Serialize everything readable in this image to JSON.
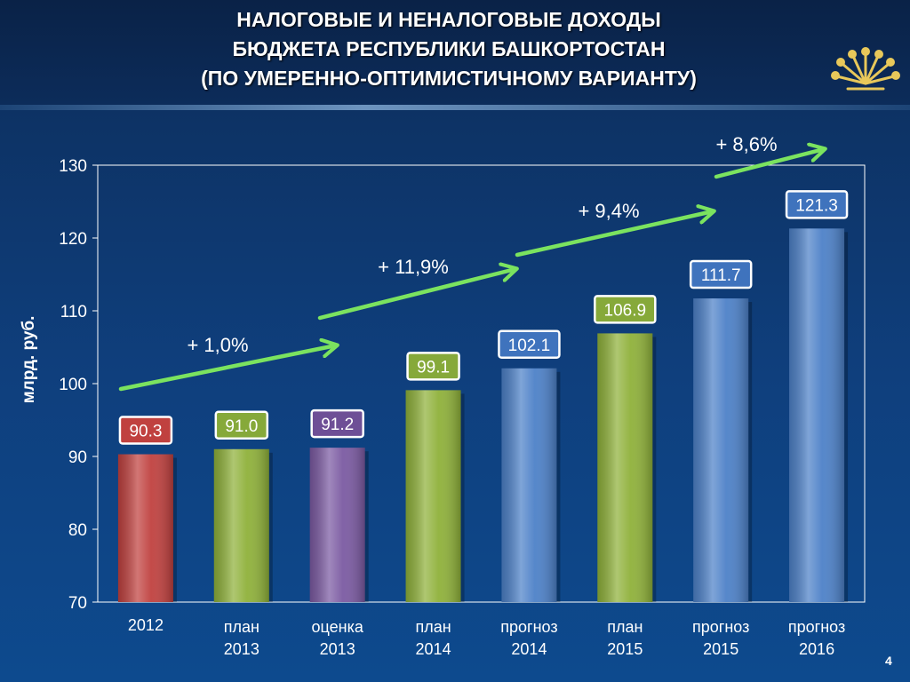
{
  "slide": {
    "title_lines": [
      "НАЛОГОВЫЕ И НЕНАЛОГОВЫЕ ДОХОДЫ",
      "БЮДЖЕТА РЕСПУБЛИКИ БАШКОРТОСТАН",
      "(ПО УМЕРЕННО-ОПТИМИСТИЧНОМУ ВАРИАНТУ)"
    ],
    "page_number": "4",
    "logo_icon": "golden-flower-emblem-icon"
  },
  "chart_data": {
    "type": "bar",
    "ylabel": "млрд. руб.",
    "ylim": [
      70,
      130
    ],
    "yticks": [
      70,
      80,
      90,
      100,
      110,
      120,
      130
    ],
    "grid": false,
    "categories": [
      [
        "2012"
      ],
      [
        "план",
        "2013"
      ],
      [
        "оценка",
        "2013"
      ],
      [
        "план",
        "2014"
      ],
      [
        "прогноз",
        "2014"
      ],
      [
        "план",
        "2015"
      ],
      [
        "прогноз",
        "2015"
      ],
      [
        "прогноз",
        "2016"
      ]
    ],
    "values": [
      90.3,
      91.0,
      91.2,
      99.1,
      102.1,
      106.9,
      111.7,
      121.3
    ],
    "data_labels": [
      "90.3",
      "91.0",
      "91.2",
      "99.1",
      "102.1",
      "106.9",
      "111.7",
      "121.3"
    ],
    "bar_colors": [
      "#c0413f",
      "#8fb13a",
      "#7b5aa2",
      "#8fb13a",
      "#4d81c8",
      "#8fb13a",
      "#4d81c8",
      "#4d81c8"
    ],
    "label_colors": [
      "#c0413f",
      "#86a93a",
      "#6e4f96",
      "#86a93a",
      "#3f73bd",
      "#86a93a",
      "#3f73bd",
      "#3f73bd"
    ],
    "growth_annotations": [
      "+ 1,0%",
      "+ 11,9%",
      "+ 9,4%",
      "+ 8,6%"
    ],
    "arrow_color": "#7be35f"
  }
}
